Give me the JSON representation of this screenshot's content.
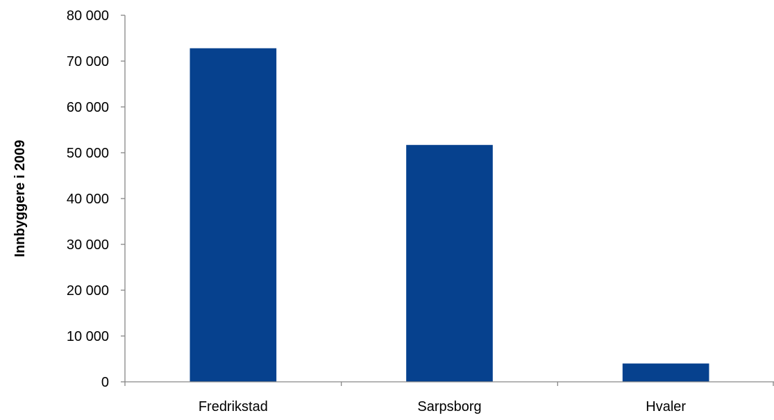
{
  "chart_data": {
    "type": "bar",
    "categories": [
      "Fredrikstad",
      "Sarpsborg",
      "Hvaler"
    ],
    "values": [
      72800,
      51700,
      4000
    ],
    "ylabel": "Innbyggere i 2009",
    "xlabel": "",
    "ylim": [
      0,
      80000
    ],
    "yticks": [
      0,
      10000,
      20000,
      30000,
      40000,
      50000,
      60000,
      70000,
      80000
    ],
    "ytick_labels": [
      "0",
      "10 000",
      "20 000",
      "30 000",
      "40 000",
      "50 000",
      "60 000",
      "70 000",
      "80 000"
    ],
    "grid": false,
    "legend": "none",
    "bar_color": "#06418E"
  }
}
